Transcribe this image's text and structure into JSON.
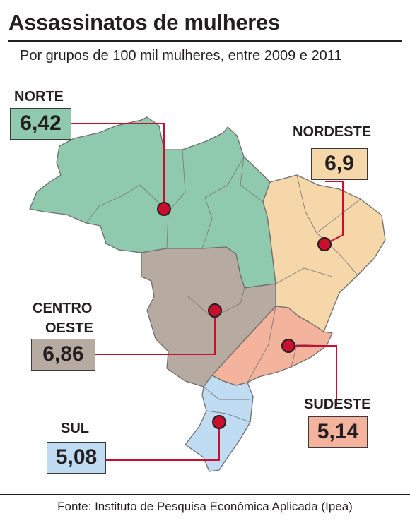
{
  "title": "Assassinatos de mulheres",
  "subtitle": "Por grupos de 100 mil mulheres, entre 2009 e 2011",
  "regions": {
    "norte": {
      "label": "NORTE",
      "value": "6,42",
      "color": "#8fc9ae"
    },
    "nordeste": {
      "label": "NORDESTE",
      "value": "6,9",
      "color": "#f6d7a9"
    },
    "centro_oeste": {
      "label_line1": "CENTRO",
      "label_line2": "OESTE",
      "value": "6,86",
      "color": "#b6aaa1"
    },
    "sudeste": {
      "label": "SUDESTE",
      "value": "5,14",
      "color": "#f4b39c"
    },
    "sul": {
      "label": "SUL",
      "value": "5,08",
      "color": "#bfdcf3"
    }
  },
  "marker_color": "#c8102e",
  "source": "Fonte: Instituto de Pesquisa Econômica Aplicada (Ipea)"
}
